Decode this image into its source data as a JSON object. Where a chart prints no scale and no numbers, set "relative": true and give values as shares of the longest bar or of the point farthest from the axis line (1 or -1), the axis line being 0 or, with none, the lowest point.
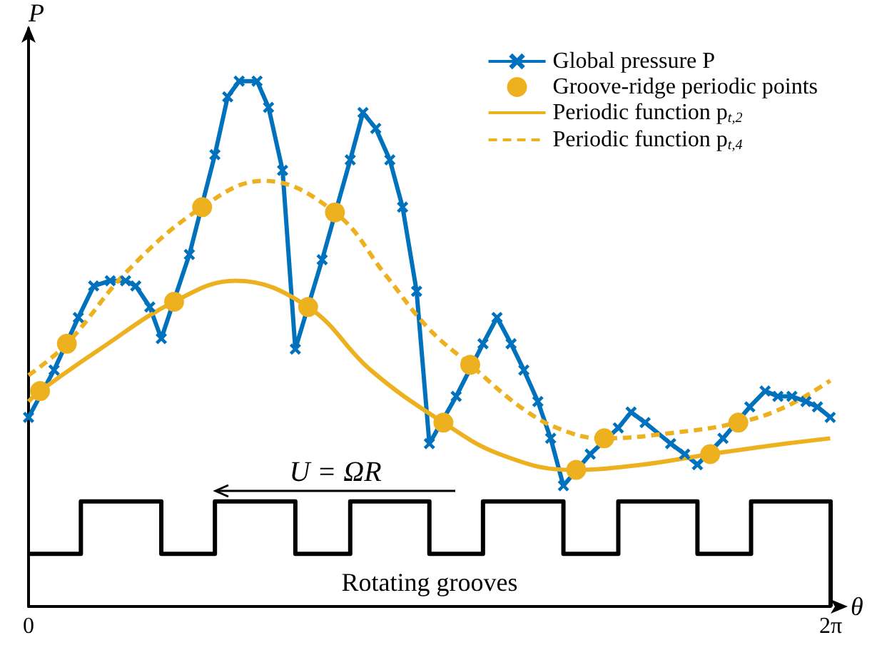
{
  "chart_data": {
    "type": "line",
    "relative": true,
    "xlabel": "θ",
    "ylabel": "P",
    "xlim": [
      0,
      6.2832
    ],
    "xticks": [
      0,
      {
        "value": 6.2832,
        "label": "2π"
      }
    ],
    "legend": "top right",
    "annotations": [
      "U = ΩR",
      "Rotating grooves"
    ],
    "series": [
      {
        "name": "Global pressure P",
        "color": "#0072bd",
        "marker": "cross",
        "line_style": "solid",
        "x": [
          0,
          0.2,
          0.39,
          0.51,
          0.64,
          0.76,
          0.84,
          0.95,
          1.04,
          1.26,
          1.46,
          1.56,
          1.65,
          1.79,
          1.88,
          1.99,
          2.09,
          2.3,
          2.52,
          2.62,
          2.72,
          2.83,
          2.93,
          3.04,
          3.14,
          3.35,
          3.56,
          3.67,
          3.78,
          3.88,
          3.99,
          4.09,
          4.19,
          4.4,
          4.62,
          4.72,
          4.83,
          5.03,
          5.14,
          5.24,
          5.44,
          5.65,
          5.77,
          5.87,
          5.98,
          6.09,
          6.18,
          6.28
        ],
        "values": [
          0.36,
          0.45,
          0.55,
          0.61,
          0.62,
          0.62,
          0.61,
          0.57,
          0.51,
          0.67,
          0.86,
          0.97,
          1,
          1,
          0.95,
          0.83,
          0.49,
          0.66,
          0.85,
          0.94,
          0.91,
          0.85,
          0.76,
          0.6,
          0.31,
          0.4,
          0.5,
          0.55,
          0.5,
          0.45,
          0.39,
          0.32,
          0.23,
          0.29,
          0.34,
          0.37,
          0.35,
          0.31,
          0.29,
          0.27,
          0.32,
          0.38,
          0.41,
          0.4,
          0.4,
          0.39,
          0.38,
          0.36
        ]
      },
      {
        "name": "Groove-ridge periodic points",
        "type": "scatter",
        "color": "#edb120",
        "marker": "circle",
        "x": [
          0.09,
          0.3,
          1.14,
          1.36,
          2.19,
          2.4,
          3.25,
          3.46,
          4.29,
          4.51,
          5.34,
          5.56
        ],
        "values": [
          0.41,
          0.5,
          0.58,
          0.76,
          0.57,
          0.75,
          0.35,
          0.46,
          0.26,
          0.32,
          0.29,
          0.35
        ]
      },
      {
        "name": "Periodic function p$_{t,2}$",
        "color": "#edb120",
        "marker": "none",
        "line_style": "solid",
        "x": [
          0,
          0.09,
          0.56,
          1.14,
          1.62,
          2.19,
          2.68,
          3.25,
          3.69,
          4.25,
          4.81,
          5.34,
          5.93,
          6.28
        ],
        "values": [
          0.39,
          0.41,
          0.49,
          0.58,
          0.62,
          0.57,
          0.45,
          0.35,
          0.29,
          0.26,
          0.27,
          0.29,
          0.31,
          0.32
        ]
      },
      {
        "name": "Periodic function p$_{t,4}$",
        "color": "#edb120",
        "marker": "none",
        "line_style": "dashed",
        "x": [
          0,
          0.3,
          0.78,
          1.36,
          1.84,
          2.4,
          2.8,
          3.13,
          3.46,
          3.91,
          4.25,
          4.51,
          5.03,
          5.56,
          5.93,
          6.28
        ],
        "values": [
          0.44,
          0.5,
          0.64,
          0.76,
          0.81,
          0.75,
          0.63,
          0.53,
          0.46,
          0.37,
          0.33,
          0.32,
          0.33,
          0.35,
          0.38,
          0.43
        ]
      },
      {
        "type": "step",
        "color": "#000000",
        "marker": "none",
        "line_style": "solid",
        "x": [
          0,
          0.41,
          1.04,
          1.46,
          2.09,
          2.52,
          3.14,
          3.56,
          4.19,
          4.62,
          5.24,
          5.66,
          6.2832,
          6.2832
        ],
        "values": [
          0.1,
          0.2,
          0.1,
          0.2,
          0.1,
          0.2,
          0.1,
          0.2,
          0.1,
          0.2,
          0.1,
          0.2,
          0.2,
          0
        ]
      }
    ]
  }
}
